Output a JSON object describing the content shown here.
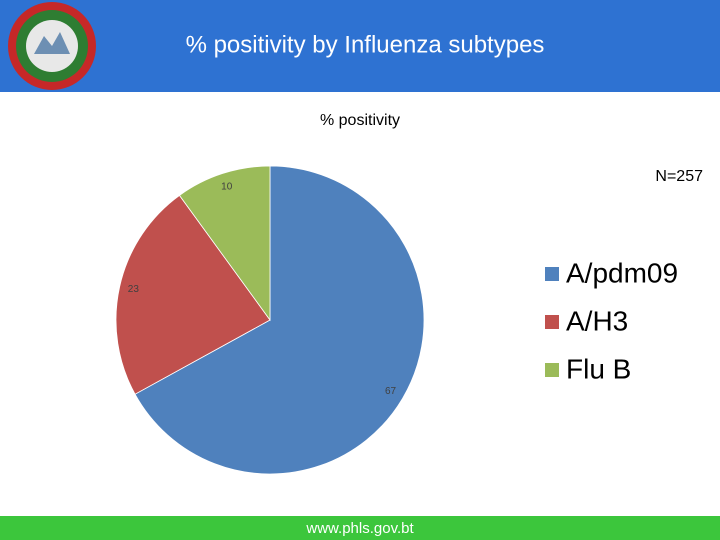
{
  "header": {
    "title": "% positivity by Influenza subtypes"
  },
  "footer": {
    "url": "www.phls.gov.bt"
  },
  "chart_data": {
    "type": "pie",
    "title": "% positivity",
    "annotation": "N=257",
    "categories": [
      "A/pdm09",
      "A/H3",
      "Flu B"
    ],
    "values": [
      67,
      23,
      10
    ],
    "colors": [
      "#4f81bd",
      "#c0504d",
      "#9bbb59"
    ],
    "legend": "right"
  }
}
